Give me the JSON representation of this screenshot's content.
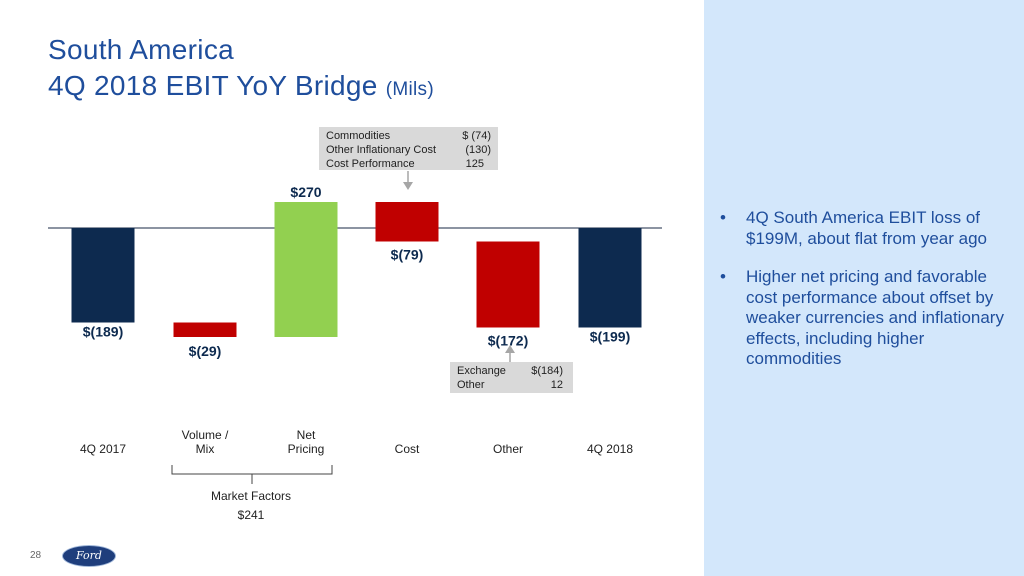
{
  "slide": {
    "title_line1": "South America",
    "title_line2": "4Q 2018 EBIT YoY Bridge",
    "title_unit": "(Mils)",
    "page_number": "28",
    "logo_text": "Ford"
  },
  "colors": {
    "title": "#1f4e9c",
    "endpoint_bar": "#0d2a4f",
    "negative_bar": "#c00000",
    "positive_bar": "#92d050",
    "panel": "#d3e7fb",
    "callout_bg": "#d9d9d9"
  },
  "bullets": [
    "4Q South America EBIT loss of $199M, about flat from year ago",
    "Higher net pricing and favorable cost performance about offset by weaker currencies and inflationary effects, including higher commodities"
  ],
  "callouts": {
    "cost": {
      "rows": [
        {
          "label": "Commodities",
          "value": "$  (74)"
        },
        {
          "label": "Other Inflationary Cost",
          "value": "(130)"
        },
        {
          "label": "Cost Performance",
          "value": "125"
        }
      ]
    },
    "other": {
      "rows": [
        {
          "label": "Exchange",
          "value": "$(184)"
        },
        {
          "label": "Other",
          "value": "12"
        }
      ]
    }
  },
  "market_factors": {
    "label": "Market Factors",
    "value": "$241"
  },
  "chart_data": {
    "type": "waterfall",
    "title": "4Q 2018 EBIT YoY Bridge (Mils)",
    "baseline": 0,
    "bars": [
      {
        "category": "4Q 2017",
        "label_lines": [
          "4Q 2017"
        ],
        "kind": "total",
        "value": -189,
        "start": 0,
        "end": -189,
        "data_label": "$(189)"
      },
      {
        "category": "Volume / Mix",
        "label_lines": [
          "Volume /",
          "Mix"
        ],
        "kind": "decrease",
        "value": -29,
        "start": -189,
        "end": -218,
        "data_label": "$(29)"
      },
      {
        "category": "Net Pricing",
        "label_lines": [
          "Net",
          "Pricing"
        ],
        "kind": "increase",
        "value": 270,
        "start": -218,
        "end": 52,
        "data_label": "$270"
      },
      {
        "category": "Cost",
        "label_lines": [
          "Cost"
        ],
        "kind": "decrease",
        "value": -79,
        "start": 52,
        "end": -27,
        "data_label": "$(79)"
      },
      {
        "category": "Other",
        "label_lines": [
          "Other"
        ],
        "kind": "decrease",
        "value": -172,
        "start": -27,
        "end": -199,
        "data_label": "$(172)"
      },
      {
        "category": "4Q 2018",
        "label_lines": [
          "4Q 2018"
        ],
        "kind": "total",
        "value": -199,
        "start": 0,
        "end": -199,
        "data_label": "$(199)"
      }
    ]
  }
}
